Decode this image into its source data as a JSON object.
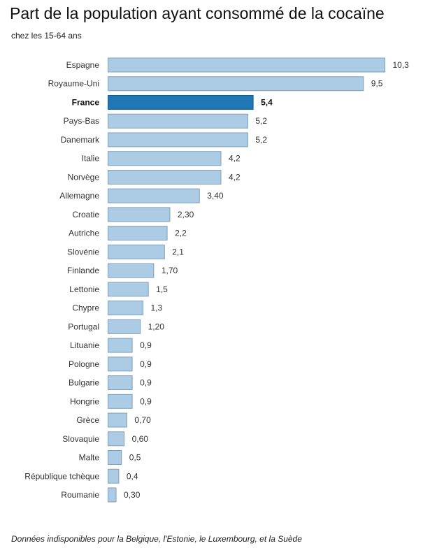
{
  "chart_data": {
    "type": "bar",
    "orientation": "horizontal",
    "title": "Part de la population ayant consommé de la cocaïne",
    "subtitle": "chez les 15-64 ans",
    "note": "Données indisponibles pour la Belgique, l'Estonie, le Luxembourg, et la Suède",
    "highlight": "France",
    "colors": {
      "bar": "#abcce4",
      "bar_border": "#7f9fba",
      "highlight": "#1f77b4",
      "highlight_border": "#155a8a"
    },
    "categories": [
      "Espagne",
      "Royaume-Uni",
      "France",
      "Pays-Bas",
      "Danemark",
      "Italie",
      "Norvège",
      "Allemagne",
      "Croatie",
      "Autriche",
      "Slovénie",
      "Finlande",
      "Lettonie",
      "Chypre",
      "Portugal",
      "Lituanie",
      "Pologne",
      "Bulgarie",
      "Hongrie",
      "Grèce",
      "Slovaquie",
      "Malte",
      "République tchèque",
      "Roumanie"
    ],
    "values": [
      10.3,
      9.5,
      5.4,
      5.2,
      5.2,
      4.2,
      4.2,
      3.4,
      2.3,
      2.2,
      2.1,
      1.7,
      1.5,
      1.3,
      1.2,
      0.9,
      0.9,
      0.9,
      0.9,
      0.7,
      0.6,
      0.5,
      0.4,
      0.3
    ],
    "value_labels": [
      "10,3",
      "9,5",
      "5,4",
      "5,2",
      "5,2",
      "4,2",
      "4,2",
      "3,40",
      "2,30",
      "2,2",
      "2,1",
      "1,70",
      "1,5",
      "1,3",
      "1,20",
      "0,9",
      "0,9",
      "0,9",
      "0,9",
      "0,70",
      "0,60",
      "0,5",
      "0,4",
      "0,30"
    ],
    "xlabel": "",
    "ylabel": "",
    "xlim": [
      0,
      10.3
    ],
    "grid": false
  }
}
